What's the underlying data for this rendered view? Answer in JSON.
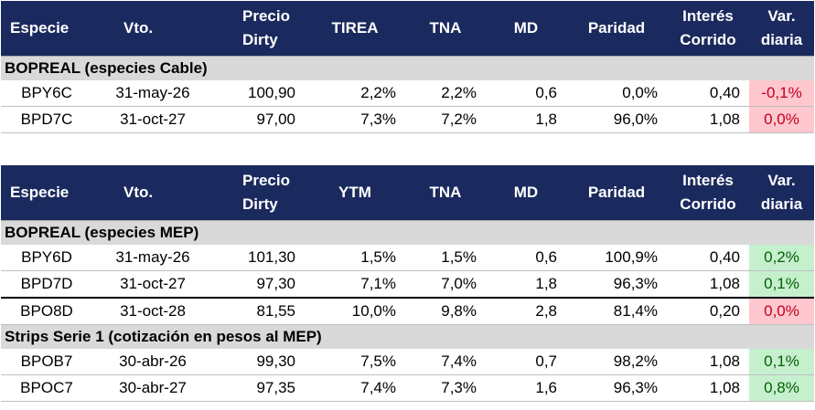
{
  "table1": {
    "headers": [
      "Especie",
      "Vto.",
      "Precio Dirty",
      "TIREA",
      "TNA",
      "MD",
      "Paridad",
      "Interés Corrido",
      "Var. diaria"
    ],
    "header_lines": [
      [
        "Especie"
      ],
      [
        "Vto."
      ],
      [
        "Precio",
        "Dirty"
      ],
      [
        "TIREA"
      ],
      [
        "TNA"
      ],
      [
        "MD"
      ],
      [
        "Paridad"
      ],
      [
        "Interés",
        "Corrido"
      ],
      [
        "Var.",
        "diaria"
      ]
    ],
    "section": "BOPREAL (especies Cable)",
    "rows": [
      {
        "especie": "BPY6C",
        "vto": "31-may-26",
        "precio": "100,90",
        "tir": "2,2%",
        "tna": "2,2%",
        "md": "0,6",
        "paridad": "0,0%",
        "interes": "0,40",
        "var": "-0,1%",
        "var_status": "neg"
      },
      {
        "especie": "BPD7C",
        "vto": "31-oct-27",
        "precio": "97,00",
        "tir": "7,3%",
        "tna": "7,2%",
        "md": "1,8",
        "paridad": "96,0%",
        "interes": "1,08",
        "var": "0,0%",
        "var_status": "neg"
      }
    ]
  },
  "table2": {
    "header_lines": [
      [
        "Especie"
      ],
      [
        "Vto."
      ],
      [
        "Precio",
        "Dirty"
      ],
      [
        "YTM"
      ],
      [
        "TNA"
      ],
      [
        "MD"
      ],
      [
        "Paridad"
      ],
      [
        "Interés",
        "Corrido"
      ],
      [
        "Var.",
        "diaria"
      ]
    ],
    "section1": "BOPREAL (especies MEP)",
    "rows1": [
      {
        "especie": "BPY6D",
        "vto": "31-may-26",
        "precio": "101,30",
        "tir": "1,5%",
        "tna": "1,5%",
        "md": "0,6",
        "paridad": "100,9%",
        "interes": "0,40",
        "var": "0,2%",
        "var_status": "pos"
      },
      {
        "especie": "BPD7D",
        "vto": "31-oct-27",
        "precio": "97,30",
        "tir": "7,1%",
        "tna": "7,0%",
        "md": "1,8",
        "paridad": "96,3%",
        "interes": "1,08",
        "var": "0,1%",
        "var_status": "pos"
      },
      {
        "especie": "BPO8D",
        "vto": "31-oct-28",
        "precio": "81,55",
        "tir": "10,0%",
        "tna": "9,8%",
        "md": "2,8",
        "paridad": "81,4%",
        "interes": "0,20",
        "var": "0,0%",
        "var_status": "neg"
      }
    ],
    "section2": "Strips Serie 1 (cotización en pesos al MEP)",
    "rows2": [
      {
        "especie": "BPOB7",
        "vto": "30-abr-26",
        "precio": "99,30",
        "tir": "7,5%",
        "tna": "7,4%",
        "md": "0,7",
        "paridad": "98,2%",
        "interes": "1,08",
        "var": "0,1%",
        "var_status": "pos"
      },
      {
        "especie": "BPOC7",
        "vto": "30-abr-27",
        "precio": "97,35",
        "tir": "7,4%",
        "tna": "7,3%",
        "md": "1,6",
        "paridad": "96,3%",
        "interes": "1,08",
        "var": "0,8%",
        "var_status": "pos"
      }
    ]
  },
  "colors": {
    "header_bg": "#1b2a5e",
    "section_bg": "#d9d9d9",
    "negative_bg": "#ffc7ce",
    "negative_text": "#c0001e",
    "positive_bg": "#c6efce",
    "positive_text": "#006100"
  }
}
